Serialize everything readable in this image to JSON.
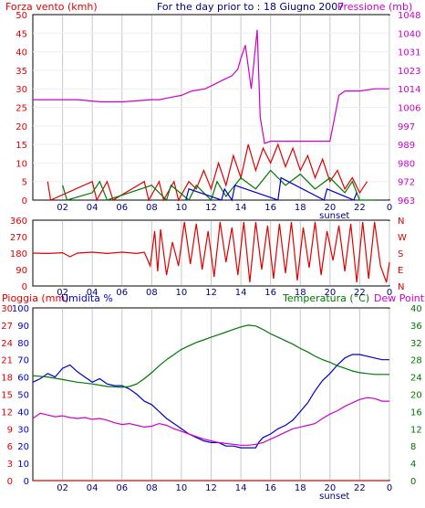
{
  "header": {
    "left_title": "Forza vento (kmh)",
    "center_title": "For the day prior to : 18 Giugno 2007",
    "right_title": "Pressione (mb)"
  },
  "colors": {
    "red": "#e00000",
    "magenta": "#cc00cc",
    "green": "#007700",
    "blue": "#0000cc",
    "grid": "#c8c8c8",
    "frame": "#000000",
    "white": "#ffffff"
  },
  "x_axis": {
    "ticks": [
      "02",
      "04",
      "06",
      "08",
      "10",
      "12",
      "14",
      "16",
      "18",
      "20",
      "22",
      "0"
    ],
    "sunset_label": "sunset"
  },
  "chart_data": [
    {
      "type": "line",
      "panel": "wind-pressure",
      "title": "",
      "xlabel": "",
      "ylabel_left": "Forza vento (kmh)",
      "ylabel_right": "Pressione (mb)",
      "ylim_left": [
        0,
        50
      ],
      "ylim_right": [
        963,
        1048
      ],
      "y_left_ticks": [
        "50",
        "45",
        "40",
        "35",
        "30",
        "25",
        "20",
        "15",
        "10",
        "5",
        "0"
      ],
      "y_right_ticks": [
        "1048",
        "1040",
        "1031",
        "1023",
        "1014",
        "1006",
        "997",
        "989",
        "980",
        "972",
        "963"
      ],
      "xlim": [
        0,
        24
      ],
      "series": [
        {
          "name": "Pressione (mb)",
          "color": "magenta",
          "x": [
            0.0,
            3.0,
            4.6,
            6.0,
            8.0,
            8.5,
            9.2,
            10.0,
            10.7,
            11.6,
            12.2,
            12.8,
            13.4,
            13.8,
            14.0,
            14.3,
            14.7,
            15.1,
            15.3,
            15.6,
            16.0,
            18.0,
            20.0,
            20.6,
            21.0,
            22.0,
            23.0,
            24.0
          ],
          "y": [
            1009,
            1009,
            1008,
            1008,
            1009,
            1009,
            1010,
            1011,
            1013,
            1014,
            1016,
            1018,
            1020,
            1023,
            1028,
            1034,
            1014,
            1041,
            1001,
            989,
            990,
            990,
            990,
            1011,
            1013,
            1013,
            1014,
            1014
          ]
        },
        {
          "name": "",
          "color": "red",
          "x": [
            1.0,
            1.2,
            4.0,
            4.3,
            5.0,
            5.4,
            7.5,
            7.8,
            8.5,
            8.8,
            9.5,
            9.8,
            10.5,
            11.0,
            11.5,
            12.0,
            12.5,
            13.0,
            13.5,
            14.0,
            14.5,
            15.0,
            15.5,
            16.0,
            16.5,
            17.0,
            17.5,
            18.0,
            18.5,
            19.0,
            19.5,
            20.0,
            20.5,
            21.0,
            21.5,
            22.0,
            22.5
          ],
          "y": [
            5,
            0,
            5,
            0,
            5,
            0,
            5,
            0,
            5,
            0,
            5,
            0,
            5,
            3,
            8,
            3,
            10,
            4,
            12,
            6,
            15,
            8,
            14,
            10,
            15,
            9,
            14,
            8,
            12,
            6,
            11,
            5,
            8,
            3,
            6,
            2,
            5
          ]
        },
        {
          "name": "",
          "color": "green",
          "x": [
            2.0,
            2.3,
            4.0,
            4.5,
            5.0,
            8.0,
            9.0,
            9.3,
            10.5,
            11.0,
            12.0,
            12.4,
            13.0,
            14.0,
            15.0,
            16.0,
            17.0,
            18.0,
            19.0,
            20.0,
            21.0,
            21.5,
            22.0,
            23.0
          ],
          "y": [
            4,
            0,
            2,
            5,
            0,
            4,
            0,
            4,
            0,
            4,
            0,
            5,
            1,
            6,
            3,
            8,
            4,
            7,
            3,
            6,
            2,
            5,
            0,
            0
          ]
        },
        {
          "name": "",
          "color": "blue",
          "x": [
            10.3,
            10.5,
            12.7,
            12.9,
            13.4,
            13.6,
            16.5,
            16.7,
            19.6,
            19.8,
            21.6,
            21.8
          ],
          "y": [
            0,
            3,
            0,
            3,
            0,
            4,
            0,
            6,
            0,
            3,
            0,
            2
          ]
        }
      ]
    },
    {
      "type": "line",
      "panel": "wind-direction",
      "title": "",
      "ylim": [
        0,
        360
      ],
      "y_left_ticks": [
        "360",
        "270",
        "180",
        "90",
        "0"
      ],
      "y_right_ticks": [
        "N",
        "W",
        "S",
        "E",
        "N"
      ],
      "xlim": [
        0,
        24
      ],
      "series": [
        {
          "name": "",
          "color": "red",
          "x": [
            0.0,
            1.0,
            2.0,
            2.5,
            3.0,
            4.0,
            5.0,
            6.0,
            7.0,
            7.5,
            7.9,
            8.2,
            8.4,
            8.6,
            9.0,
            9.4,
            9.8,
            10.2,
            10.6,
            11.0,
            11.4,
            11.8,
            12.2,
            12.6,
            13.0,
            13.4,
            13.8,
            14.2,
            14.6,
            15.0,
            15.4,
            15.8,
            16.2,
            16.6,
            17.0,
            17.4,
            17.8,
            18.2,
            18.6,
            19.0,
            19.4,
            19.8,
            20.2,
            20.6,
            21.0,
            21.4,
            21.8,
            22.2,
            22.6,
            23.0,
            23.4,
            23.8,
            24.0
          ],
          "y": [
            180,
            178,
            182,
            160,
            180,
            185,
            178,
            185,
            178,
            185,
            110,
            300,
            80,
            310,
            60,
            240,
            110,
            350,
            120,
            340,
            90,
            300,
            50,
            350,
            130,
            320,
            60,
            350,
            20,
            350,
            90,
            330,
            40,
            340,
            70,
            350,
            30,
            320,
            100,
            350,
            60,
            300,
            140,
            330,
            80,
            340,
            20,
            350,
            40,
            350,
            110,
            20,
            130
          ]
        }
      ]
    },
    {
      "type": "line",
      "panel": "rain-humidity-temperature",
      "title": "",
      "ylabel_left_1": "Pioggia (mm)",
      "ylabel_left_2": "Umidita %",
      "ylabel_right_1": "Temperatura (°C)",
      "ylabel_right_2": "Dew Point",
      "ylim_rain": [
        0,
        30
      ],
      "ylim_humidity": [
        0,
        100
      ],
      "ylim_temperature": [
        0,
        40
      ],
      "y_rain_ticks": [
        "30",
        "27",
        "24",
        "21",
        "18",
        "15",
        "12",
        "9",
        "6",
        "3",
        "0"
      ],
      "y_humidity_ticks": [
        "100",
        "90",
        "80",
        "70",
        "60",
        "50",
        "40",
        "30",
        "20",
        "10",
        "0"
      ],
      "y_temperature_ticks": [
        "40",
        "36",
        "32",
        "28",
        "24",
        "20",
        "16",
        "12",
        "8",
        "4",
        "0"
      ],
      "xlim": [
        0,
        24
      ],
      "series": [
        {
          "name": "Umidita %",
          "color": "blue",
          "x": [
            0.0,
            0.5,
            1.0,
            1.5,
            2.0,
            2.5,
            3.0,
            3.5,
            4.0,
            4.5,
            5.0,
            5.5,
            6.0,
            6.5,
            7.0,
            7.5,
            8.0,
            8.5,
            9.0,
            9.5,
            10.0,
            10.5,
            11.0,
            11.5,
            12.0,
            12.5,
            13.0,
            13.5,
            14.0,
            14.5,
            15.0,
            15.2,
            15.5,
            16.0,
            16.5,
            17.0,
            17.5,
            18.0,
            18.5,
            19.0,
            19.5,
            20.0,
            20.5,
            21.0,
            21.5,
            22.0,
            22.5,
            23.0,
            23.5,
            24.0
          ],
          "y": [
            57,
            59,
            62,
            60,
            65,
            67,
            63,
            60,
            57,
            59,
            56,
            55,
            55,
            53,
            50,
            46,
            44,
            40,
            36,
            33,
            30,
            27,
            25,
            23,
            22,
            22,
            20,
            20,
            19,
            19,
            19,
            22,
            25,
            27,
            30,
            32,
            35,
            40,
            45,
            52,
            58,
            62,
            67,
            71,
            73,
            73,
            72,
            71,
            70,
            70
          ]
        },
        {
          "name": "Temperatura (°C)",
          "color": "green",
          "x": [
            0.0,
            1.0,
            2.0,
            3.0,
            4.0,
            5.0,
            6.0,
            6.5,
            7.0,
            7.5,
            8.0,
            8.5,
            9.0,
            9.5,
            10.0,
            10.5,
            11.0,
            11.5,
            12.0,
            12.5,
            13.0,
            13.5,
            14.0,
            14.5,
            15.0,
            15.5,
            16.0,
            16.5,
            17.0,
            17.5,
            18.0,
            18.5,
            19.0,
            19.5,
            20.0,
            20.5,
            21.0,
            21.5,
            22.0,
            22.5,
            23.0,
            23.5,
            24.0
          ],
          "y": [
            24.3,
            24.0,
            23.4,
            22.8,
            22.4,
            21.8,
            21.6,
            21.8,
            22.4,
            23.6,
            25.0,
            26.6,
            28.0,
            29.2,
            30.4,
            31.2,
            32.0,
            32.6,
            33.2,
            33.8,
            34.4,
            35.0,
            35.6,
            36.0,
            35.8,
            35.0,
            34.0,
            33.2,
            32.4,
            31.6,
            30.6,
            29.8,
            28.8,
            28.0,
            27.4,
            26.6,
            26.0,
            25.4,
            25.0,
            24.8,
            24.6,
            24.6,
            24.6
          ]
        },
        {
          "name": "Dew Point",
          "color": "magenta",
          "x": [
            0.0,
            0.5,
            1.0,
            1.5,
            2.0,
            2.5,
            3.0,
            3.5,
            4.0,
            4.5,
            5.0,
            5.5,
            6.0,
            6.5,
            7.0,
            7.5,
            8.0,
            8.5,
            9.0,
            9.5,
            10.0,
            10.5,
            11.0,
            11.5,
            12.0,
            12.5,
            13.0,
            13.5,
            14.0,
            14.5,
            15.0,
            15.5,
            16.0,
            16.5,
            17.0,
            17.5,
            18.0,
            18.5,
            19.0,
            19.5,
            20.0,
            20.5,
            21.0,
            21.5,
            22.0,
            22.5,
            23.0,
            23.5,
            24.0
          ],
          "y": [
            14.4,
            15.6,
            15.2,
            14.8,
            15.0,
            14.6,
            14.4,
            14.6,
            14.2,
            14.4,
            14.0,
            13.4,
            13.0,
            13.2,
            12.8,
            12.4,
            12.6,
            13.2,
            12.8,
            12.0,
            11.4,
            10.8,
            10.2,
            9.6,
            9.2,
            8.8,
            8.6,
            8.4,
            8.2,
            8.2,
            8.4,
            8.8,
            9.6,
            10.4,
            11.2,
            12.0,
            12.4,
            12.8,
            13.2,
            14.4,
            15.4,
            16.2,
            17.2,
            18.0,
            18.8,
            19.2,
            19.0,
            18.4,
            18.4
          ]
        },
        {
          "name": "Pioggia (mm)",
          "color": "red",
          "x": [
            0,
            24
          ],
          "y": [
            0,
            0
          ]
        }
      ]
    }
  ],
  "panel3_labels": {
    "rain": "Pioggia (mm)",
    "humidity": "Umidita %",
    "temperature": "Temperatura (°C)",
    "dew": "Dew Point"
  }
}
